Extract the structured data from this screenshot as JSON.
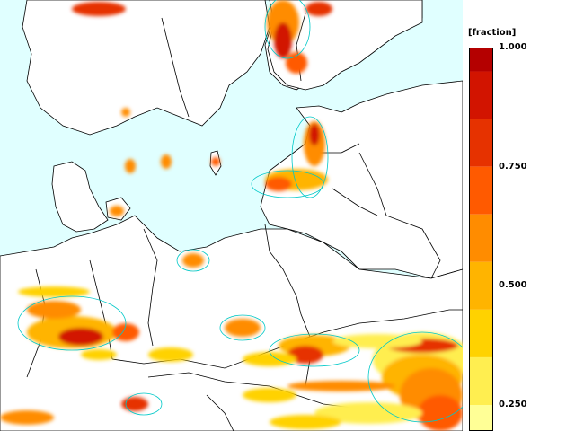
{
  "legend": {
    "unit_label": "[fraction]",
    "ticks": [
      "1.000",
      "0.750",
      "0.500",
      "0.250"
    ],
    "tick_values": [
      1.0,
      0.75,
      0.5,
      0.25
    ],
    "bands": [
      {
        "from": 0.95,
        "to": 1.0,
        "color": "#b40000"
      },
      {
        "from": 0.85,
        "to": 0.95,
        "color": "#d21400"
      },
      {
        "from": 0.75,
        "to": 0.85,
        "color": "#e63200"
      },
      {
        "from": 0.65,
        "to": 0.75,
        "color": "#ff5a00"
      },
      {
        "from": 0.55,
        "to": 0.65,
        "color": "#ff8c00"
      },
      {
        "from": 0.45,
        "to": 0.55,
        "color": "#ffb400"
      },
      {
        "from": 0.35,
        "to": 0.45,
        "color": "#ffd200"
      },
      {
        "from": 0.25,
        "to": 0.35,
        "color": "#ffee50"
      },
      {
        "from": 0.15,
        "to": 0.25,
        "color": "#ffff96"
      }
    ]
  },
  "colors": {
    "ocean": "#e0ffff",
    "land": "#ffffff",
    "border": "#000000",
    "contour": "#00c8c8"
  }
}
